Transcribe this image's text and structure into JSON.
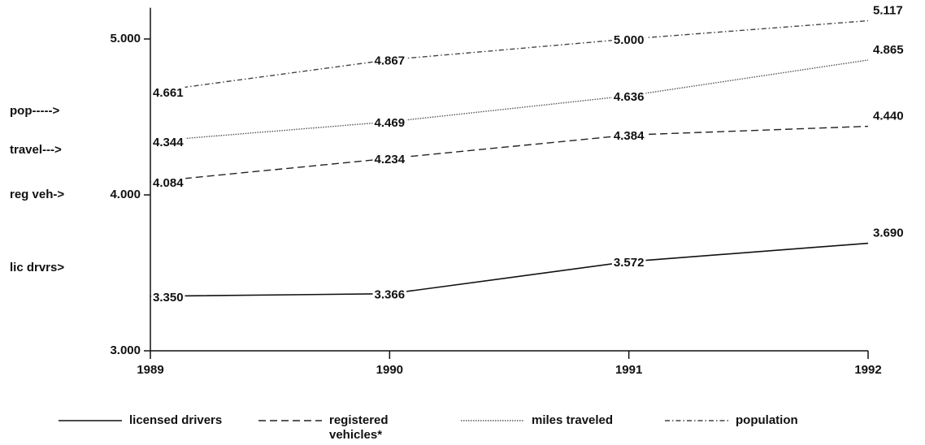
{
  "chart_data": {
    "type": "line",
    "categories": [
      "1989",
      "1990",
      "1991",
      "1992"
    ],
    "ylim": [
      3,
      5.2
    ],
    "yticks": [
      {
        "value": 3,
        "label": "3.000"
      },
      {
        "value": 4,
        "label": "4.000"
      },
      {
        "value": 5,
        "label": "5.000"
      }
    ],
    "annotations": [
      "pop----->",
      "travel--->",
      "reg veh->",
      "lic drvrs>"
    ],
    "series": [
      {
        "name": "licensed drivers",
        "color": "#111111",
        "dash": "solid",
        "values": [
          3.35,
          3.366,
          3.572,
          3.69
        ],
        "value_labels": [
          "3.350",
          "3.366",
          "3.572",
          "3.690"
        ]
      },
      {
        "name": "registered vehicles*",
        "color": "#222222",
        "dash": "dashed",
        "values": [
          4.084,
          4.234,
          4.384,
          4.44
        ],
        "value_labels": [
          "4.084",
          "4.234",
          "4.384",
          "4.440"
        ]
      },
      {
        "name": "miles traveled",
        "color": "#555555",
        "dash": "dotted",
        "values": [
          4.344,
          4.469,
          4.636,
          4.865
        ],
        "value_labels": [
          "4.344",
          "4.469",
          "4.636",
          "4.865"
        ]
      },
      {
        "name": "population",
        "color": "#444444",
        "dash": "dashdot",
        "values": [
          4.661,
          4.867,
          5.0,
          5.117
        ],
        "value_labels": [
          "4.661",
          "4.867",
          "5.000",
          "5.117"
        ]
      }
    ]
  }
}
